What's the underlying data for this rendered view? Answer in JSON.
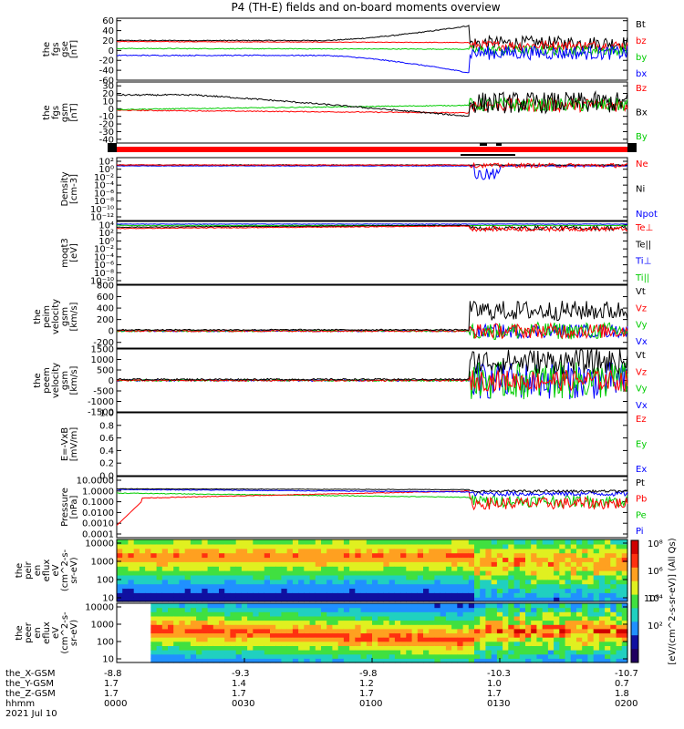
{
  "title": "P4 (TH-E) fields and on-board moments overview",
  "colors": {
    "black": "#000000",
    "red": "#ff0000",
    "green": "#00cc00",
    "blue": "#0000ff",
    "darkred": "#aa0000"
  },
  "chart_data": [
    {
      "id": "fgs_gsm",
      "type": "line",
      "ylabel": [
        "the",
        "fgs",
        "gse",
        "[nT]"
      ],
      "ylim": [
        -60,
        65
      ],
      "yticks": [
        "60",
        "40",
        "20",
        "0",
        "-20",
        "-40",
        "-60"
      ],
      "yticks_v": [
        60,
        40,
        20,
        0,
        -20,
        -40,
        -60
      ],
      "legend": [
        {
          "label": "Bt",
          "color": "#000000"
        },
        {
          "label": "bz",
          "color": "#ff0000"
        },
        {
          "label": "by",
          "color": "#00cc00"
        },
        {
          "label": "bx",
          "color": "#0000ff"
        }
      ]
    },
    {
      "id": "fgs_gsm2",
      "type": "line",
      "ylabel": [
        "the",
        "fgs",
        "gsm",
        "[nT]"
      ],
      "ylim": [
        -45,
        35
      ],
      "yticks": [
        "30",
        "20",
        "10",
        "0",
        "-10",
        "-20",
        "-30",
        "-40"
      ],
      "yticks_v": [
        30,
        20,
        10,
        0,
        -10,
        -20,
        -30,
        -40
      ],
      "legend": [
        {
          "label": "Bz",
          "color": "#ff0000"
        },
        {
          "label": "Bx",
          "color": "#000000"
        },
        {
          "label": "By",
          "color": "#00cc00"
        }
      ]
    },
    {
      "id": "density",
      "type": "line",
      "log": true,
      "ylabel": [
        "Density",
        "[cm-3]"
      ],
      "yticks": [
        "10²",
        "10⁰",
        "10⁻²",
        "10⁻⁴",
        "10⁻⁶",
        "10⁻⁸",
        "10⁻¹⁰",
        "10⁻¹²"
      ],
      "legend": [
        {
          "label": "Ne",
          "color": "#ff0000"
        },
        {
          "label": "Ni",
          "color": "#000000"
        },
        {
          "label": "Npot",
          "color": "#0000ff"
        }
      ]
    },
    {
      "id": "temp",
      "type": "line",
      "log": true,
      "ylabel": [
        "moqt3",
        "[eV]"
      ],
      "yticks": [
        "10⁴",
        "10²",
        "10⁰",
        "10⁻²",
        "10⁻⁴",
        "10⁻⁶",
        "10⁻⁸",
        "10⁻¹⁰"
      ],
      "legend": [
        {
          "label": "Te⊥",
          "color": "#ff0000"
        },
        {
          "label": "Te||",
          "color": "#000000"
        },
        {
          "label": "Ti⊥",
          "color": "#0000ff"
        },
        {
          "label": "Ti||",
          "color": "#00cc00"
        }
      ]
    },
    {
      "id": "peim_vel",
      "type": "line",
      "ylabel": [
        "the",
        "peim",
        "velocity",
        "gsm",
        "[km/s]"
      ],
      "ylim": [
        -300,
        800
      ],
      "yticks": [
        "800",
        "600",
        "400",
        "200",
        "0",
        "-200"
      ],
      "yticks_v": [
        800,
        600,
        400,
        200,
        0,
        -200
      ],
      "legend": [
        {
          "label": "Vt",
          "color": "#000000"
        },
        {
          "label": "Vz",
          "color": "#ff0000"
        },
        {
          "label": "Vy",
          "color": "#00cc00"
        },
        {
          "label": "Vx",
          "color": "#0000ff"
        }
      ]
    },
    {
      "id": "peem_vel",
      "type": "line",
      "ylabel": [
        "the",
        "peem",
        "velocity",
        "gsm",
        "[km/s]"
      ],
      "ylim": [
        -1500,
        1500
      ],
      "yticks": [
        "1500",
        "1000",
        "500",
        "0",
        "-500",
        "-1000",
        "-1500"
      ],
      "yticks_v": [
        1500,
        1000,
        500,
        0,
        -500,
        -1000,
        -1500
      ],
      "legend": [
        {
          "label": "Vt",
          "color": "#000000"
        },
        {
          "label": "Vz",
          "color": "#ff0000"
        },
        {
          "label": "Vy",
          "color": "#00cc00"
        },
        {
          "label": "Vx",
          "color": "#0000ff"
        }
      ]
    },
    {
      "id": "efield",
      "type": "line",
      "ylabel": [
        "E=-VxB",
        "[mV/m]"
      ],
      "ylim": [
        0,
        1.0
      ],
      "yticks": [
        "1.0",
        "0.8",
        "0.6",
        "0.4",
        "0.2",
        "0.0"
      ],
      "yticks_v": [
        1.0,
        0.8,
        0.6,
        0.4,
        0.2,
        0.0
      ],
      "legend": [
        {
          "label": "Ez",
          "color": "#ff0000"
        },
        {
          "label": "Ey",
          "color": "#00cc00"
        },
        {
          "label": "Ex",
          "color": "#0000ff"
        }
      ]
    },
    {
      "id": "pressure",
      "type": "line",
      "log": true,
      "ylabel": [
        "Pressure",
        "[nPa]"
      ],
      "yticks": [
        "10.0000",
        "1.0000",
        "0.1000",
        "0.0100",
        "0.0010",
        "0.0001"
      ],
      "legend": [
        {
          "label": "Pt",
          "color": "#000000"
        },
        {
          "label": "Pb",
          "color": "#ff0000"
        },
        {
          "label": "Pe",
          "color": "#00cc00"
        },
        {
          "label": "Pi",
          "color": "#0000ff"
        }
      ]
    },
    {
      "id": "peir_spec",
      "type": "heatmap",
      "ylabel": [
        "the",
        "peir",
        "en",
        "eflux",
        "eV",
        "(cm^2-s-",
        "sr-eV)"
      ],
      "yticks": [
        "10000",
        "1000",
        "100",
        "10"
      ]
    },
    {
      "id": "peer_spec",
      "type": "heatmap",
      "ylabel": [
        "the",
        "peer",
        "en",
        "eflux",
        "eV",
        "(cm^2-s-",
        "sr-eV)"
      ],
      "yticks": [
        "10000",
        "1000",
        "100",
        "10"
      ]
    }
  ],
  "colorbar": {
    "label": "[eV/(cm^2-s-sr-eV)] (All Qs)",
    "ticks": [
      "10⁸",
      "10⁶",
      "10⁴",
      "10²"
    ]
  },
  "xaxis": {
    "rows": [
      {
        "name": "the_X-GSM",
        "values": [
          "-8.8",
          "-9.3",
          "-9.8",
          "-10.3",
          "-10.7"
        ]
      },
      {
        "name": "the_Y-GSM",
        "values": [
          "1.7",
          "1.4",
          "1.2",
          "1.0",
          "0.7"
        ]
      },
      {
        "name": "the_Z-GSM",
        "values": [
          "1.7",
          "1.7",
          "1.7",
          "1.7",
          "1.8"
        ]
      },
      {
        "name": "hhmm",
        "values": [
          "0000",
          "0030",
          "0100",
          "0130",
          "0200"
        ]
      }
    ],
    "date": "2021 Jul 10"
  }
}
